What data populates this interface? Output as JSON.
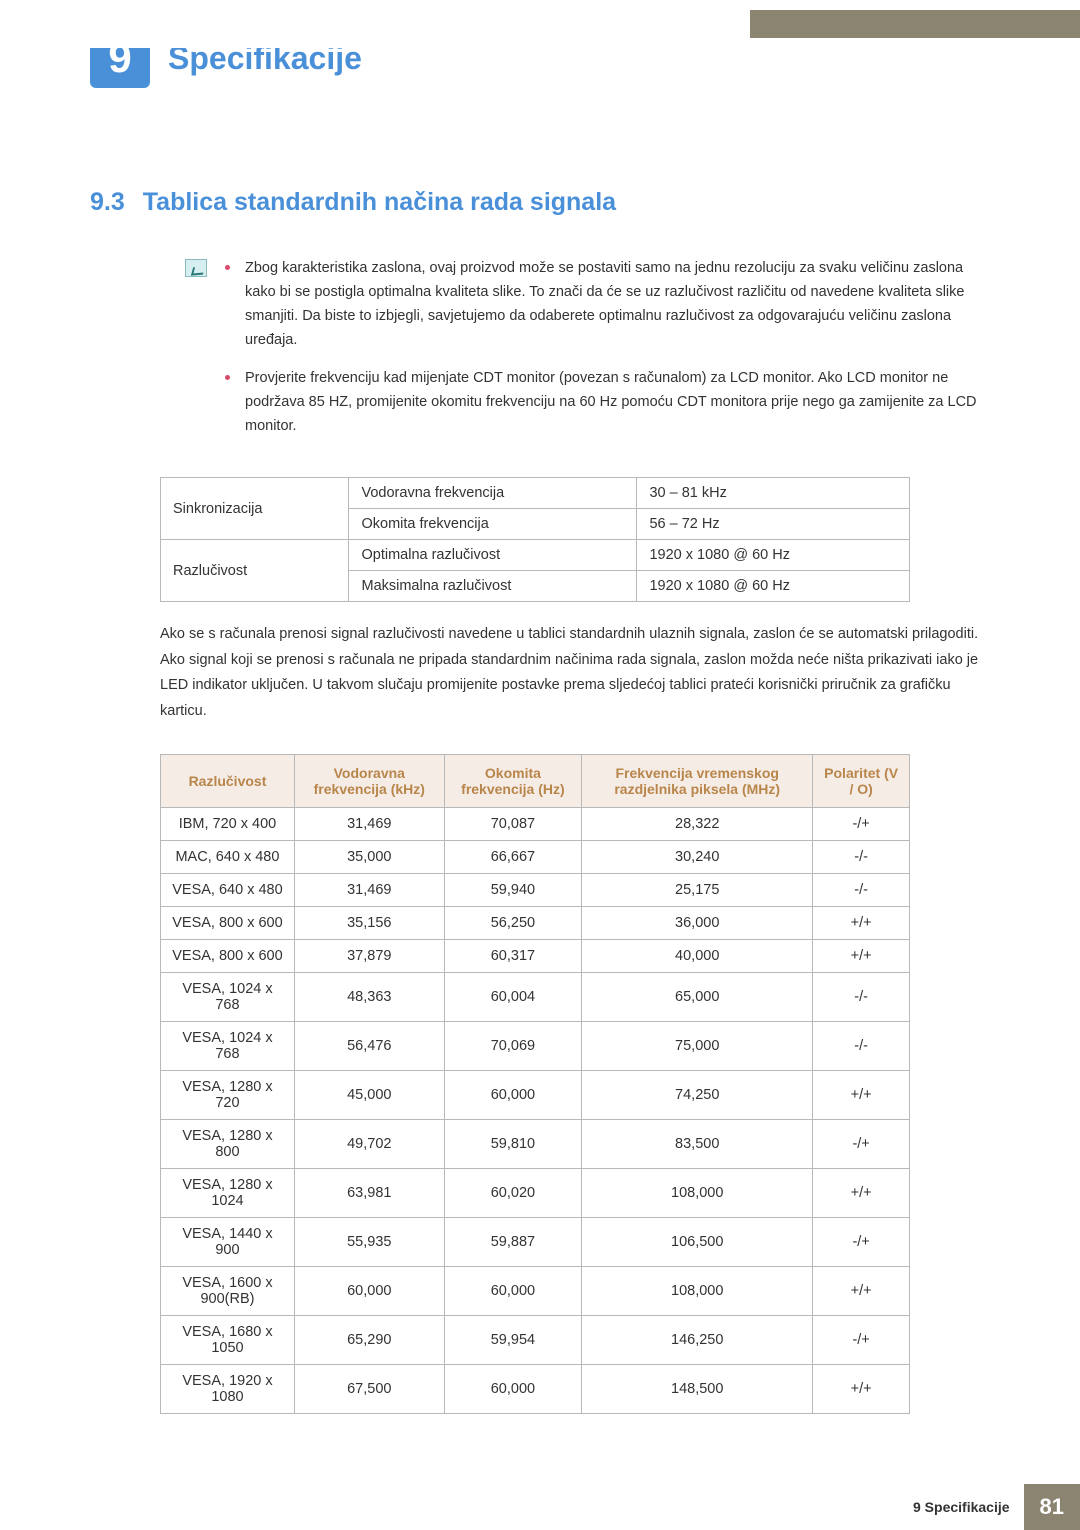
{
  "chapter": {
    "number": "9",
    "title": "Specifikacije"
  },
  "section": {
    "number": "9.3",
    "title": "Tablica standardnih načina rada signala"
  },
  "notes": [
    "Zbog karakteristika zaslona, ovaj proizvod može se postaviti samo na jednu rezoluciju za svaku veličinu zaslona kako bi se postigla optimalna kvaliteta slike. To znači da će se uz razlučivost različitu od navedene kvaliteta slike smanjiti. Da biste to izbjegli, savjetujemo da odaberete optimalnu razlučivost za odgovarajuću veličinu zaslona uređaja.",
    "Provjerite frekvenciju kad mijenjate CDT monitor (povezan s računalom) za LCD monitor. Ako LCD monitor ne podržava 85 HZ, promijenite okomitu frekvenciju na 60 Hz pomoću CDT monitora prije nego ga zamijenite za LCD monitor."
  ],
  "spec_table": {
    "rows": [
      {
        "label": "Sinkronizacija",
        "rowspan": 2,
        "cells": [
          [
            "Vodoravna frekvencija",
            "30 – 81 kHz"
          ],
          [
            "Okomita frekvencija",
            "56 – 72 Hz"
          ]
        ]
      },
      {
        "label": "Razlučivost",
        "rowspan": 2,
        "cells": [
          [
            "Optimalna razlučivost",
            "1920 x 1080 @ 60 Hz"
          ],
          [
            "Maksimalna razlučivost",
            "1920 x 1080 @ 60 Hz"
          ]
        ]
      }
    ]
  },
  "paragraph": "Ako se s računala prenosi signal razlučivosti navedene u tablici standardnih ulaznih signala, zaslon će se automatski prilagoditi. Ako signal koji se prenosi s računala ne pripada standardnim načinima rada signala, zaslon možda neće ništa prikazivati iako je LED indikator uključen. U takvom slučaju promijenite postavke prema sljedećoj tablici prateći korisnički priručnik za grafičku karticu.",
  "signal_table": {
    "columns": [
      "Razlučivost",
      "Vodoravna frekvencija (kHz)",
      "Okomita frekvencija (Hz)",
      "Frekvencija vremenskog razdjelnika piksela (MHz)",
      "Polaritet (V / O)"
    ],
    "rows": [
      [
        "IBM, 720 x 400",
        "31,469",
        "70,087",
        "28,322",
        "-/+"
      ],
      [
        "MAC, 640 x 480",
        "35,000",
        "66,667",
        "30,240",
        "-/-"
      ],
      [
        "VESA, 640 x 480",
        "31,469",
        "59,940",
        "25,175",
        "-/-"
      ],
      [
        "VESA, 800 x 600",
        "35,156",
        "56,250",
        "36,000",
        "+/+"
      ],
      [
        "VESA, 800 x 600",
        "37,879",
        "60,317",
        "40,000",
        "+/+"
      ],
      [
        "VESA, 1024 x 768",
        "48,363",
        "60,004",
        "65,000",
        "-/-"
      ],
      [
        "VESA, 1024 x 768",
        "56,476",
        "70,069",
        "75,000",
        "-/-"
      ],
      [
        "VESA, 1280 x 720",
        "45,000",
        "60,000",
        "74,250",
        "+/+"
      ],
      [
        "VESA, 1280 x 800",
        "49,702",
        "59,810",
        "83,500",
        "-/+"
      ],
      [
        "VESA, 1280 x 1024",
        "63,981",
        "60,020",
        "108,000",
        "+/+"
      ],
      [
        "VESA, 1440 x 900",
        "55,935",
        "59,887",
        "106,500",
        "-/+"
      ],
      [
        "VESA, 1600 x 900(RB)",
        "60,000",
        "60,000",
        "108,000",
        "+/+"
      ],
      [
        "VESA, 1680 x 1050",
        "65,290",
        "59,954",
        "146,250",
        "-/+"
      ],
      [
        "VESA, 1920 x 1080",
        "67,500",
        "60,000",
        "148,500",
        "+/+"
      ]
    ]
  },
  "footer": {
    "label": "9 Specifikacije",
    "page": "81"
  },
  "colors": {
    "accent_blue": "#4a90d9",
    "header_bg": "#f6ece6",
    "header_text": "#b8864b",
    "banner": "#8a8470",
    "bullet": "#d94a6a",
    "border": "#b8b8b8"
  }
}
